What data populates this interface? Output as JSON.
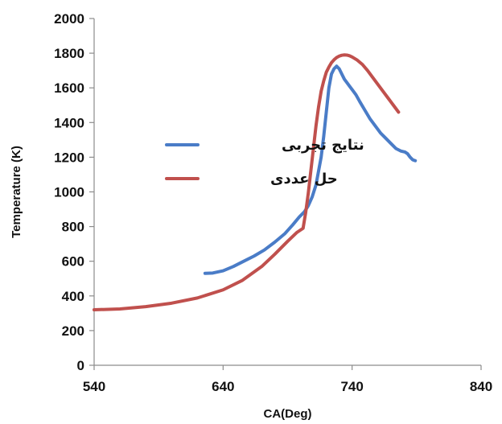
{
  "chart_data": {
    "type": "line",
    "title": "",
    "xlabel": "CA(Deg)",
    "ylabel": "Temperature (K)",
    "xlim": [
      540,
      840
    ],
    "ylim": [
      0,
      2000
    ],
    "x_ticks": [
      540,
      640,
      740,
      840
    ],
    "y_ticks": [
      0,
      200,
      400,
      600,
      800,
      1000,
      1200,
      1400,
      1600,
      1800,
      2000
    ],
    "grid": false,
    "legend_position": "middle-left",
    "series": [
      {
        "name": "نتايج تجربى",
        "color": "#4a7cc7",
        "x": [
          626,
          632,
          640,
          648,
          656,
          664,
          672,
          680,
          688,
          694,
          699,
          703,
          706,
          709,
          712,
          714,
          716,
          718,
          720,
          722,
          724,
          726,
          728,
          730,
          732,
          734,
          736,
          738,
          740,
          743,
          746,
          750,
          754,
          758,
          762,
          766,
          770,
          774,
          778,
          781,
          783,
          785,
          787,
          789
        ],
        "y": [
          530,
          532,
          545,
          570,
          600,
          630,
          665,
          710,
          760,
          810,
          855,
          885,
          920,
          970,
          1040,
          1120,
          1200,
          1320,
          1460,
          1600,
          1680,
          1710,
          1725,
          1710,
          1680,
          1650,
          1630,
          1610,
          1590,
          1560,
          1520,
          1470,
          1420,
          1380,
          1340,
          1310,
          1280,
          1250,
          1235,
          1230,
          1220,
          1200,
          1185,
          1180
        ]
      },
      {
        "name": "حل عددى",
        "color": "#c0504d",
        "x": [
          540,
          560,
          580,
          600,
          620,
          640,
          655,
          670,
          680,
          690,
          697,
          702,
          704,
          706,
          708,
          710,
          712,
          714,
          716,
          718,
          720,
          722,
          724,
          726,
          728,
          730,
          732,
          734,
          736,
          738,
          740,
          744,
          748,
          752,
          756,
          760,
          764,
          768,
          772,
          776
        ],
        "y": [
          320,
          325,
          338,
          358,
          388,
          435,
          490,
          570,
          640,
          715,
          765,
          790,
          880,
          990,
          1120,
          1250,
          1380,
          1490,
          1580,
          1640,
          1690,
          1720,
          1745,
          1762,
          1775,
          1783,
          1788,
          1790,
          1789,
          1785,
          1778,
          1760,
          1735,
          1700,
          1660,
          1620,
          1580,
          1540,
          1500,
          1460
        ]
      }
    ]
  }
}
